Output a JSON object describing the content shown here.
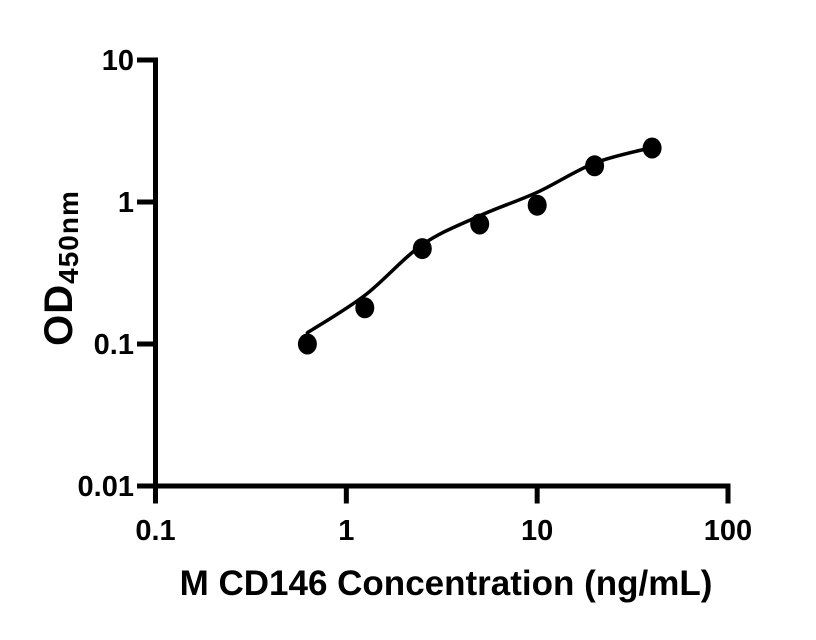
{
  "figure": {
    "background_color": "#ffffff",
    "axis_color": "#000000"
  },
  "chart_data": {
    "type": "scatter",
    "subtype": "log-log ELISA standard curve with fit line",
    "title": "",
    "xlabel": "M CD146 Concentration (ng/mL)",
    "ylabel": "OD450nm",
    "ylabel_main": "OD",
    "ylabel_subscript": "450nm",
    "x_scale": "log10",
    "y_scale": "log10",
    "xlim": [
      0.1,
      100
    ],
    "ylim": [
      0.01,
      10
    ],
    "x_tick_values": [
      0.1,
      1,
      10,
      100
    ],
    "x_tick_labels": [
      "0.1",
      "1",
      "10",
      "100"
    ],
    "y_tick_values": [
      0.01,
      0.1,
      1,
      10
    ],
    "y_tick_labels": [
      "0.01",
      "0.1",
      "1",
      "10"
    ],
    "grid": false,
    "legend": "none",
    "marker": "filled-circle",
    "marker_color": "#000000",
    "line_color": "#000000",
    "points": [
      {
        "x": 0.625,
        "y": 0.1
      },
      {
        "x": 1.25,
        "y": 0.18
      },
      {
        "x": 2.5,
        "y": 0.47
      },
      {
        "x": 5,
        "y": 0.7
      },
      {
        "x": 10,
        "y": 0.95
      },
      {
        "x": 20,
        "y": 1.8
      },
      {
        "x": 40,
        "y": 2.4
      }
    ],
    "fit_line_points": [
      {
        "x": 0.625,
        "y": 0.12
      },
      {
        "x": 1.25,
        "y": 0.22
      },
      {
        "x": 2.5,
        "y": 0.5
      },
      {
        "x": 5,
        "y": 0.8
      },
      {
        "x": 10,
        "y": 1.17
      },
      {
        "x": 20,
        "y": 1.88
      },
      {
        "x": 40,
        "y": 2.42
      }
    ]
  }
}
